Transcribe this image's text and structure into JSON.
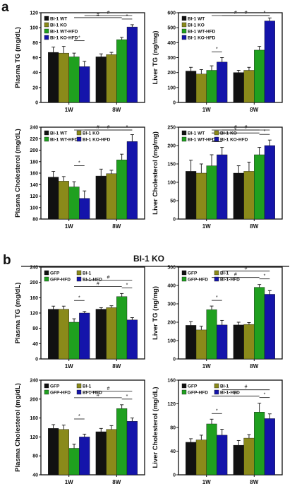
{
  "labels": {
    "panel_a": "a",
    "panel_b": "b",
    "section_b_title": "BI-1 KO"
  },
  "colors": {
    "s1": "#111111",
    "s2": "#8a8a1a",
    "s3": "#1fa01f",
    "s4": "#1414aa"
  },
  "chart_data": [
    {
      "type": "bar",
      "panel": "a",
      "ylabel": "Plasma TG (mg/dL)",
      "categories": [
        "1W",
        "8W"
      ],
      "ylim": [
        0,
        120
      ],
      "yticks": [
        0,
        20,
        40,
        60,
        80,
        100,
        120
      ],
      "series": [
        {
          "name": "BI-1 WT",
          "values": [
            67,
            61
          ],
          "errors": [
            7,
            4
          ]
        },
        {
          "name": "BI-1 KO",
          "values": [
            66,
            64
          ],
          "errors": [
            9,
            3
          ]
        },
        {
          "name": "BI-1 WT-HFD",
          "values": [
            61,
            84
          ],
          "errors": [
            5,
            3
          ]
        },
        {
          "name": "BI-1 KO-HFD",
          "values": [
            48,
            101
          ],
          "errors": [
            7,
            3
          ]
        }
      ],
      "legend_columns": 1,
      "annotations": [
        "*",
        "#",
        "#",
        "*"
      ]
    },
    {
      "type": "bar",
      "panel": "a",
      "ylabel": "Liver TG (ng/mg)",
      "categories": [
        "1W",
        "8W"
      ],
      "ylim": [
        0,
        600
      ],
      "yticks": [
        0,
        100,
        200,
        300,
        400,
        500,
        600
      ],
      "series": [
        {
          "name": "BI-1 WT",
          "values": [
            210,
            200
          ],
          "errors": [
            25,
            15
          ]
        },
        {
          "name": "BI-1 KO",
          "values": [
            190,
            215
          ],
          "errors": [
            30,
            20
          ]
        },
        {
          "name": "BI-1 WT-HFD",
          "values": [
            215,
            350
          ],
          "errors": [
            30,
            25
          ]
        },
        {
          "name": "BI-1 KO-HFD",
          "values": [
            270,
            545
          ],
          "errors": [
            30,
            20
          ]
        }
      ],
      "legend_columns": 1,
      "annotations": [
        "*",
        "#",
        "#",
        "*"
      ]
    },
    {
      "type": "bar",
      "panel": "a",
      "ylabel": "Plasma Cholesterol (mg/dL)",
      "categories": [
        "1W",
        "8W"
      ],
      "ylim": [
        80,
        240
      ],
      "yticks": [
        80,
        100,
        120,
        140,
        160,
        180,
        200,
        220,
        240
      ],
      "series": [
        {
          "name": "BI-1 WT",
          "values": [
            153,
            155
          ],
          "errors": [
            10,
            12
          ]
        },
        {
          "name": "BI-1 KO",
          "values": [
            146,
            159
          ],
          "errors": [
            8,
            6
          ]
        },
        {
          "name": "BI-1 WT-HFD",
          "values": [
            136,
            183
          ],
          "errors": [
            9,
            10
          ]
        },
        {
          "name": "BI-1 KO-HFD",
          "values": [
            116,
            215
          ],
          "errors": [
            13,
            12
          ]
        }
      ],
      "legend_columns": 2,
      "annotations": [
        "*",
        "#",
        "#",
        "*"
      ]
    },
    {
      "type": "bar",
      "panel": "a",
      "ylabel": "Liver Cholesterol (mg/mg)",
      "categories": [
        "1W",
        "8W"
      ],
      "ylim": [
        0,
        250
      ],
      "yticks": [
        0,
        50,
        100,
        150,
        200,
        250
      ],
      "series": [
        {
          "name": "BI-1 WT",
          "values": [
            130,
            125
          ],
          "errors": [
            30,
            20
          ]
        },
        {
          "name": "BI-1 KO",
          "values": [
            125,
            130
          ],
          "errors": [
            25,
            25
          ]
        },
        {
          "name": "BI-1 WT-HFD",
          "values": [
            145,
            175
          ],
          "errors": [
            30,
            20
          ]
        },
        {
          "name": "BI-1 KO-HFD",
          "values": [
            175,
            200
          ],
          "errors": [
            20,
            15
          ]
        }
      ],
      "legend_columns": 2,
      "annotations": [
        "*",
        "*",
        "#",
        "#",
        "*"
      ]
    },
    {
      "type": "bar",
      "panel": "b",
      "ylabel": "Plasma TG (mg/dL)",
      "categories": [
        "1W",
        "8W"
      ],
      "ylim": [
        0,
        240
      ],
      "yticks": [
        0,
        40,
        80,
        120,
        160,
        200,
        240
      ],
      "series": [
        {
          "name": "GFP",
          "values": [
            130,
            130
          ],
          "errors": [
            8,
            4
          ]
        },
        {
          "name": "BI-1",
          "values": [
            130,
            134
          ],
          "errors": [
            8,
            5
          ]
        },
        {
          "name": "GFP-HFD",
          "values": [
            96,
            163
          ],
          "errors": [
            9,
            8
          ]
        },
        {
          "name": "BI-1-HFD",
          "values": [
            120,
            102
          ],
          "errors": [
            4,
            6
          ]
        }
      ],
      "legend_columns": 2,
      "annotations": [
        "*",
        "#",
        "#",
        "*"
      ]
    },
    {
      "type": "bar",
      "panel": "b",
      "ylabel": "Liver TG (ng/mg)",
      "categories": [
        "1W",
        "8W"
      ],
      "ylim": [
        0,
        500
      ],
      "yticks": [
        0,
        100,
        200,
        300,
        400,
        500
      ],
      "series": [
        {
          "name": "GFP",
          "values": [
            183,
            185
          ],
          "errors": [
            20,
            15
          ]
        },
        {
          "name": "BI-1",
          "values": [
            158,
            188
          ],
          "errors": [
            20,
            10
          ]
        },
        {
          "name": "GFP-HFD",
          "values": [
            268,
            390
          ],
          "errors": [
            20,
            15
          ]
        },
        {
          "name": "BI-1-HFD",
          "values": [
            185,
            352
          ],
          "errors": [
            25,
            20
          ]
        }
      ],
      "legend_columns": 2,
      "annotations": [
        "*",
        "#",
        "#",
        "*"
      ]
    },
    {
      "type": "bar",
      "panel": "b",
      "ylabel": "Plasma Cholesterol (mg/dL)",
      "categories": [
        "1W",
        "8W"
      ],
      "ylim": [
        40,
        240
      ],
      "yticks": [
        40,
        80,
        120,
        160,
        200,
        240
      ],
      "series": [
        {
          "name": "GFP",
          "values": [
            138,
            131
          ],
          "errors": [
            8,
            7
          ]
        },
        {
          "name": "BI-1",
          "values": [
            136,
            136
          ],
          "errors": [
            9,
            8
          ]
        },
        {
          "name": "GFP-HFD",
          "values": [
            96,
            180
          ],
          "errors": [
            9,
            8
          ]
        },
        {
          "name": "BI-1-HFD",
          "values": [
            120,
            153
          ],
          "errors": [
            6,
            7
          ]
        }
      ],
      "legend_columns": 2,
      "annotations": [
        "*",
        "#",
        "#",
        "*"
      ]
    },
    {
      "type": "bar",
      "panel": "b",
      "ylabel": "Liver Cholesterol (mg/dL)",
      "categories": [
        "1W",
        "8W"
      ],
      "ylim": [
        0,
        160
      ],
      "yticks": [
        0,
        40,
        80,
        120,
        160
      ],
      "series": [
        {
          "name": "GFP",
          "values": [
            55,
            50
          ],
          "errors": [
            6,
            8
          ]
        },
        {
          "name": "BI-1",
          "values": [
            59,
            62
          ],
          "errors": [
            8,
            6
          ]
        },
        {
          "name": "GFP-HFD",
          "values": [
            86,
            106
          ],
          "errors": [
            8,
            15
          ]
        },
        {
          "name": "BI-1-HFD",
          "values": [
            67,
            95
          ],
          "errors": [
            10,
            8
          ]
        }
      ],
      "legend_columns": 2,
      "annotations": [
        "*",
        "#",
        "#",
        "*"
      ]
    }
  ]
}
